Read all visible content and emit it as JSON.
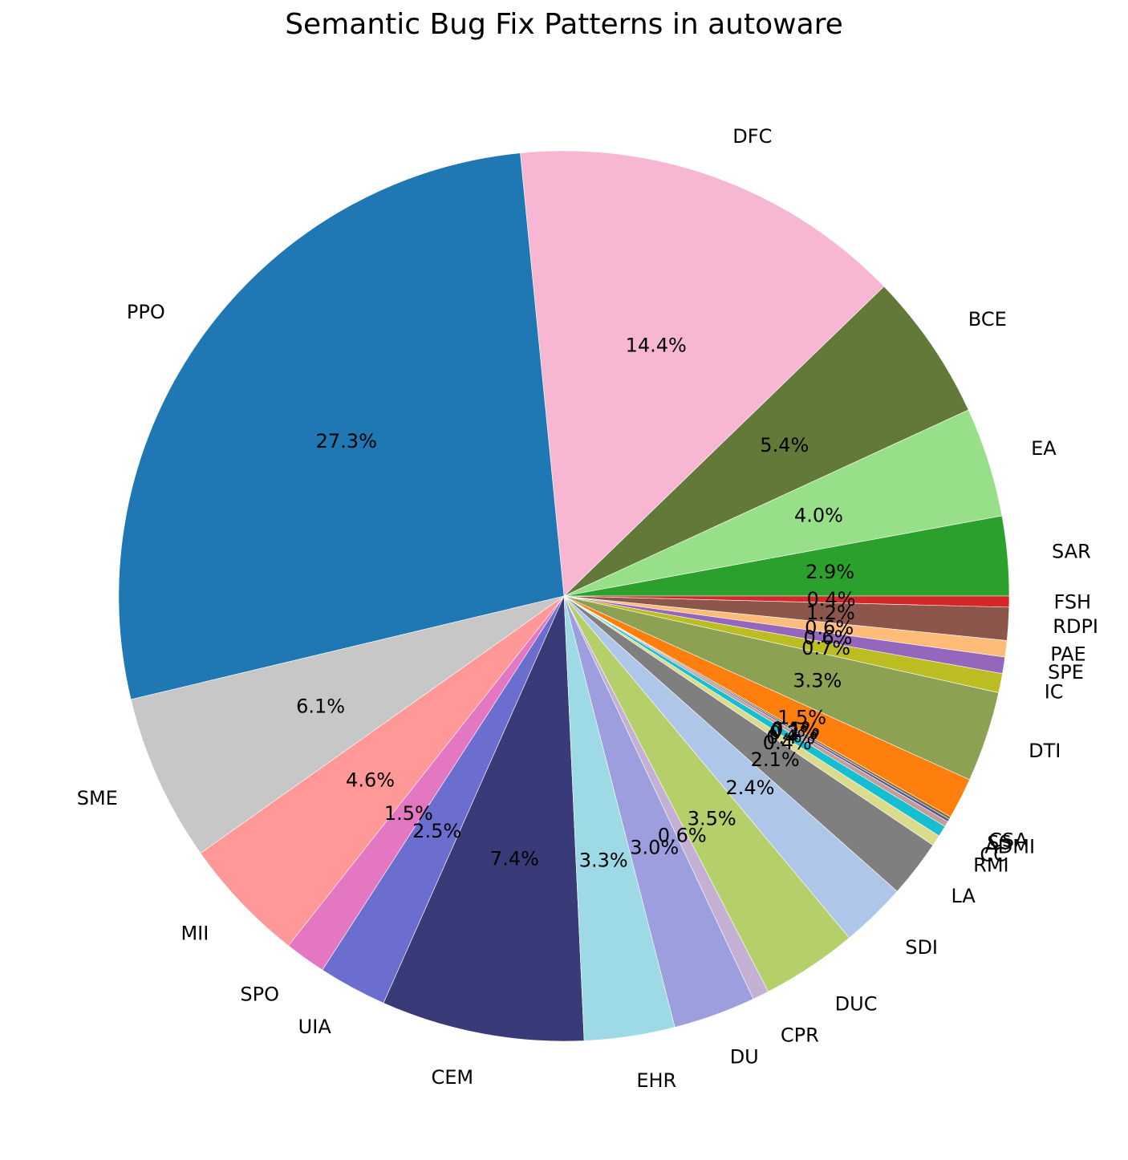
{
  "chart_data": {
    "type": "pie",
    "title": "Semantic Bug Fix Patterns in autoware",
    "start_angle_deg": 0,
    "direction": "counterclockwise",
    "slices": [
      {
        "label": "SAR",
        "value": 2.9,
        "pct_label": "2.9%",
        "color": "#2ca02c"
      },
      {
        "label": "EA",
        "value": 4.0,
        "pct_label": "4.0%",
        "color": "#98df8a"
      },
      {
        "label": "BCE",
        "value": 5.4,
        "pct_label": "5.4%",
        "color": "#637939"
      },
      {
        "label": "DFC",
        "value": 14.4,
        "pct_label": "14.4%",
        "color": "#f7b6d2"
      },
      {
        "label": "PPO",
        "value": 27.3,
        "pct_label": "27.3%",
        "color": "#1f77b4"
      },
      {
        "label": "SME",
        "value": 6.1,
        "pct_label": "6.1%",
        "color": "#c7c7c7"
      },
      {
        "label": "MII",
        "value": 4.6,
        "pct_label": "4.6%",
        "color": "#ff9896"
      },
      {
        "label": "SPO",
        "value": 1.5,
        "pct_label": "1.5%",
        "color": "#e377c2"
      },
      {
        "label": "UIA",
        "value": 2.5,
        "pct_label": "2.5%",
        "color": "#6b6ecf"
      },
      {
        "label": "CEM",
        "value": 7.4,
        "pct_label": "7.4%",
        "color": "#393b79"
      },
      {
        "label": "EHR",
        "value": 3.3,
        "pct_label": "3.3%",
        "color": "#9edae5"
      },
      {
        "label": "DU",
        "value": 3.0,
        "pct_label": "3.0%",
        "color": "#9c9ede"
      },
      {
        "label": "CPR",
        "value": 0.6,
        "pct_label": "0.6%",
        "color": "#c5b0d5"
      },
      {
        "label": "DUC",
        "value": 3.5,
        "pct_label": "3.5%",
        "color": "#b5cf6b"
      },
      {
        "label": "SDI",
        "value": 2.4,
        "pct_label": "2.4%",
        "color": "#aec7e8"
      },
      {
        "label": "LA",
        "value": 2.1,
        "pct_label": "2.1%",
        "color": "#7f7f7f"
      },
      {
        "label": "RMI",
        "value": 0.4,
        "pct_label": "0.4%",
        "color": "#dbdb8d"
      },
      {
        "label": "CC",
        "value": 0.4,
        "pct_label": "0.4%",
        "color": "#17becf"
      },
      {
        "label": "ADMI",
        "value": 0.2,
        "pct_label": "0.2%",
        "color": "#c49c94"
      },
      {
        "label": "SS",
        "value": 0.1,
        "pct_label": "0.1%",
        "color": "#5254a3"
      },
      {
        "label": "CSA",
        "value": 0.1,
        "pct_label": "0.1%",
        "color": "#8c6d31"
      },
      {
        "label": "",
        "value": 1.5,
        "pct_label": "1.5%",
        "color": "#ff7f0e"
      },
      {
        "label": "DTI",
        "value": 3.3,
        "pct_label": "3.3%",
        "color": "#8ca252"
      },
      {
        "label": "IC",
        "value": 0.7,
        "pct_label": "0.7%",
        "color": "#bcbd22"
      },
      {
        "label": "SPE",
        "value": 0.6,
        "pct_label": "0.6%",
        "color": "#9467bd"
      },
      {
        "label": "PAE",
        "value": 0.6,
        "pct_label": "0.6%",
        "color": "#ffbb78"
      },
      {
        "label": "RDPI",
        "value": 1.2,
        "pct_label": "1.2%",
        "color": "#8c564b"
      },
      {
        "label": "FSH",
        "value": 0.4,
        "pct_label": "0.4%",
        "color": "#d62728"
      }
    ]
  }
}
